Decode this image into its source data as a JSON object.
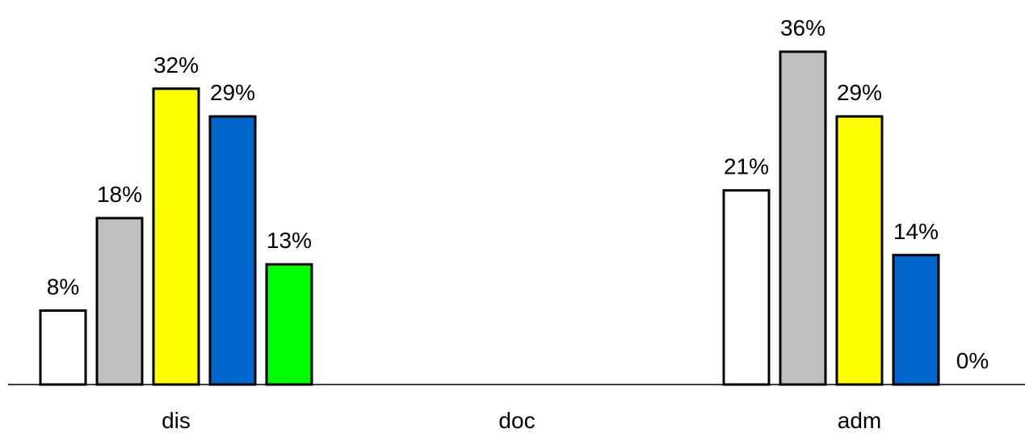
{
  "chart_data": {
    "type": "bar",
    "categories": [
      "dis",
      "doc",
      "adm"
    ],
    "series": [
      {
        "values": [
          8,
          null,
          21
        ],
        "color": "#ffffff"
      },
      {
        "values": [
          18,
          null,
          36
        ],
        "color": "#c0c0c0"
      },
      {
        "values": [
          32,
          null,
          29
        ],
        "color": "#ffff00"
      },
      {
        "values": [
          29,
          null,
          14
        ],
        "color": "#0066cc"
      },
      {
        "values": [
          13,
          null,
          0
        ],
        "color": "#00ff00"
      }
    ],
    "data_labels": [
      [
        "8%",
        null,
        "21%"
      ],
      [
        "18%",
        null,
        "36%"
      ],
      [
        "32%",
        null,
        "29%"
      ],
      [
        "29%",
        null,
        "14%"
      ],
      [
        "13%",
        null,
        "0%"
      ]
    ],
    "ylim": [
      0,
      38
    ],
    "grid": false,
    "legend": "none"
  }
}
